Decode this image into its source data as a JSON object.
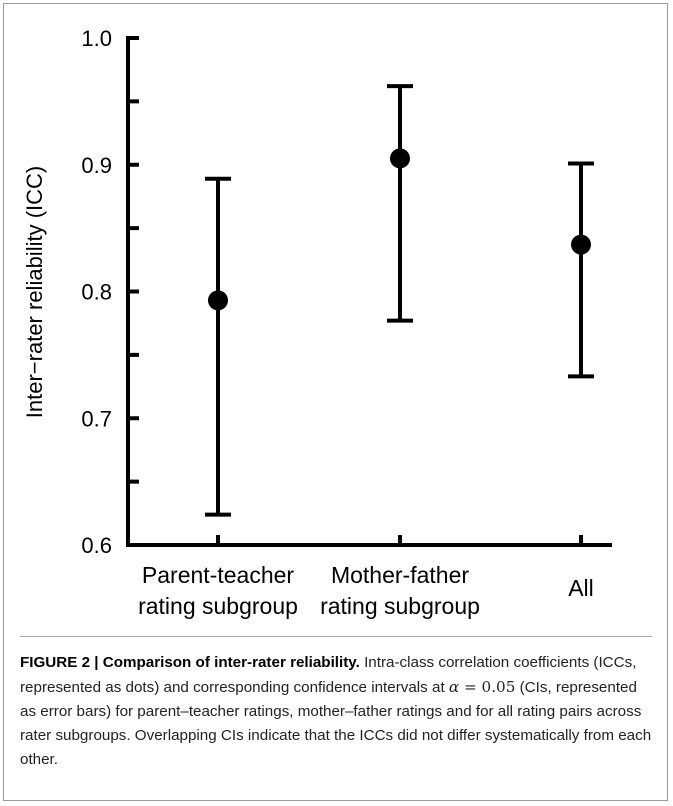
{
  "chart_data": {
    "type": "errorbar",
    "ylabel": "Inter−rater reliability (ICC)",
    "categories": [
      [
        "Parent-teacher",
        "rating subgroup"
      ],
      [
        "Mother-father",
        "rating subgroup"
      ],
      [
        "All"
      ]
    ],
    "values": [
      0.793,
      0.905,
      0.837
    ],
    "lower": [
      0.624,
      0.777,
      0.733
    ],
    "upper": [
      0.889,
      0.962,
      0.901
    ],
    "color": "#000000",
    "ylim": [
      0.6,
      1.0
    ],
    "yticks": [
      {
        "value": 0.6,
        "label": "0.6"
      },
      {
        "value": 0.7,
        "label": "0.7"
      },
      {
        "value": 0.8,
        "label": "0.8"
      },
      {
        "value": 0.9,
        "label": "0.9"
      },
      {
        "value": 1.0,
        "label": "1.0"
      }
    ],
    "minor_yticks": [
      0.65,
      0.75,
      0.85,
      0.95
    ]
  },
  "caption": {
    "label": "FIGURE 2 | Comparison of inter-rater reliability.",
    "text_before": "Intra-class correlation coefficients (ICCs, represented as dots) and corresponding confidence intervals at",
    "alpha_symbol": "α",
    "alpha_rest": "= 0.05",
    "text_after": "(CIs, represented as error bars) for parent–teacher ratings, mother–father ratings and for all rating pairs across rater subgroups. Overlapping CIs indicate that the ICCs did not differ systematically from each other."
  }
}
